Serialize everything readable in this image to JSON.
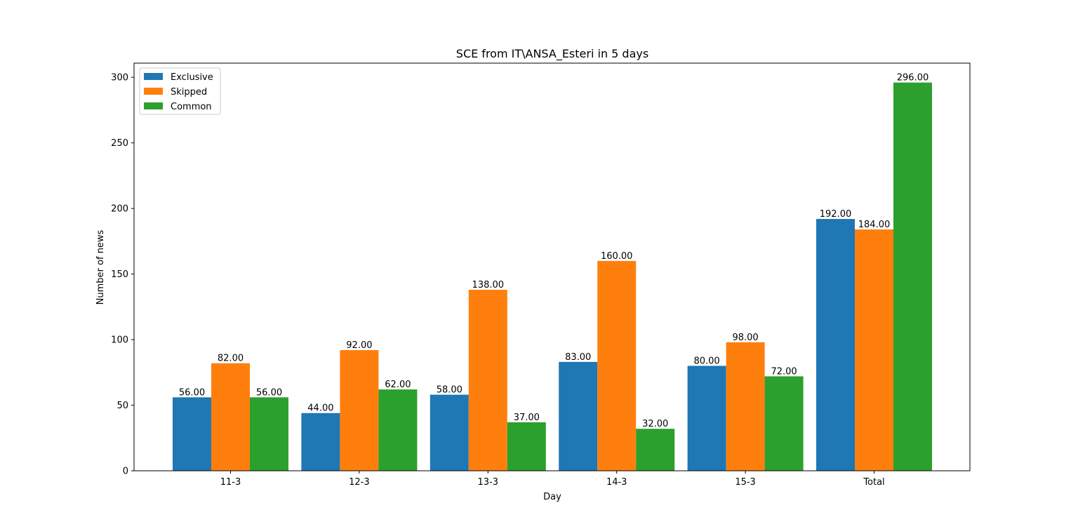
{
  "chart_data": {
    "type": "bar",
    "title": "SCE from IT\\ANSA_Esteri in 5 days",
    "xlabel": "Day",
    "ylabel": "Number of news",
    "categories": [
      "11-3",
      "12-3",
      "13-3",
      "14-3",
      "15-3",
      "Total"
    ],
    "series": [
      {
        "name": "Exclusive",
        "color": "#1f77b4",
        "values": [
          56,
          44,
          58,
          83,
          80,
          192
        ]
      },
      {
        "name": "Skipped",
        "color": "#ff7f0e",
        "values": [
          82,
          92,
          138,
          160,
          98,
          184
        ]
      },
      {
        "name": "Common",
        "color": "#2ca02c",
        "values": [
          56,
          62,
          37,
          32,
          72,
          296
        ]
      }
    ],
    "ylim": [
      0,
      300
    ],
    "yticks": [
      0,
      50,
      100,
      150,
      200,
      250,
      300
    ],
    "value_labels": {
      "Exclusive": [
        "56.00",
        "44.00",
        "58.00",
        "83.00",
        "80.00",
        "192.00"
      ],
      "Skipped": [
        "82.00",
        "92.00",
        "138.00",
        "160.00",
        "98.00",
        "184.00"
      ],
      "Common": [
        "56.00",
        "62.00",
        "37.00",
        "32.00",
        "72.00",
        "296.00"
      ]
    },
    "grid": false,
    "legend_position": "top-left"
  }
}
